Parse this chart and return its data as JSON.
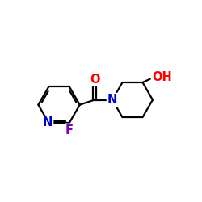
{
  "background_color": "#ffffff",
  "bond_color": "#000000",
  "N_color": "#0000cd",
  "O_color": "#ff0000",
  "F_color": "#7f00bb",
  "N_label": "N",
  "O_label": "O",
  "F_label": "F",
  "OH_label": "OH",
  "figsize": [
    2.5,
    2.5
  ],
  "dpi": 100
}
